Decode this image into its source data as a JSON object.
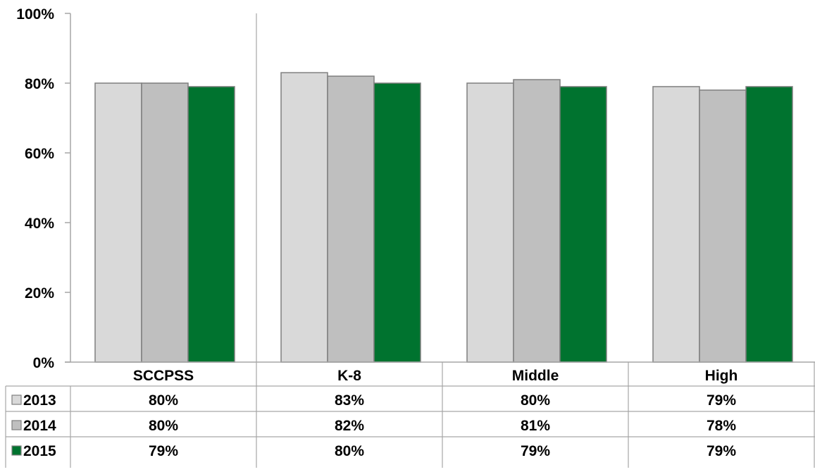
{
  "chart_data": {
    "type": "bar",
    "categories": [
      "SCCPSS",
      "K-8",
      "Middle",
      "High"
    ],
    "series": [
      {
        "name": "2013",
        "values": [
          80,
          83,
          80,
          79
        ],
        "labels": [
          "80%",
          "83%",
          "80%",
          "79%"
        ],
        "color": "#d9d9d9"
      },
      {
        "name": "2014",
        "values": [
          80,
          82,
          81,
          78
        ],
        "labels": [
          "80%",
          "82%",
          "81%",
          "78%"
        ],
        "color": "#bfbfbf"
      },
      {
        "name": "2015",
        "values": [
          79,
          80,
          79,
          79
        ],
        "labels": [
          "79%",
          "80%",
          "79%",
          "79%"
        ],
        "color": "#00732f"
      }
    ],
    "ylim": [
      0,
      100
    ],
    "yticks": [
      0,
      20,
      40,
      60,
      80,
      100
    ],
    "ytick_labels": [
      "0%",
      "20%",
      "40%",
      "60%",
      "80%",
      "100%"
    ],
    "grid": false,
    "legend": "data-table",
    "colors": {
      "bar_border": "#7f7f7f",
      "axis": "#a6a6a6",
      "table_lines": "#a6a6a6"
    }
  }
}
